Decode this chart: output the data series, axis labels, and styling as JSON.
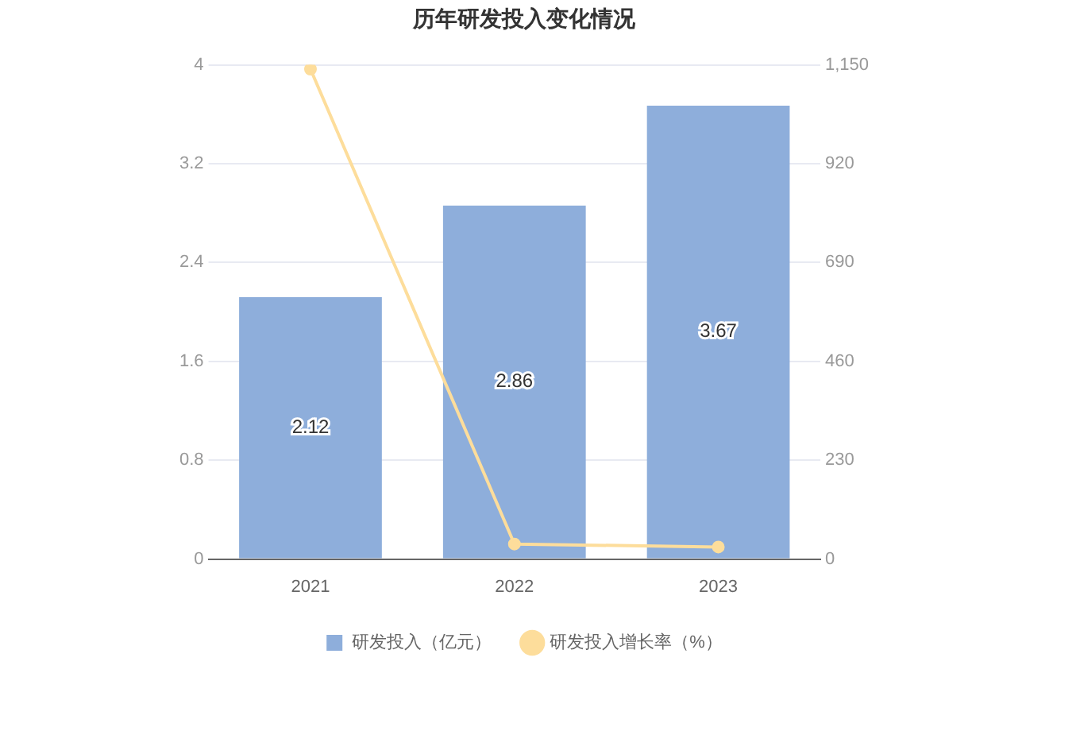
{
  "chart_data": {
    "type": "bar",
    "title": "历年研发投入变化情况",
    "categories": [
      "2021",
      "2022",
      "2023"
    ],
    "series": [
      {
        "name": "研发投入（亿元）",
        "color": "#8eaedb",
        "values": [
          2.12,
          2.86,
          3.67
        ],
        "value_labels": [
          "2.12",
          "2.86",
          "3.67"
        ]
      },
      {
        "name": "研发投入增长率（%）",
        "type": "line",
        "axis": "y2",
        "color": "#fddd9b",
        "values": [
          1140,
          35,
          28
        ]
      }
    ],
    "ylim": [
      0,
      4
    ],
    "yticks": [
      0,
      0.8,
      1.6,
      2.4,
      3.2,
      4
    ],
    "y2lim": [
      0,
      1150
    ],
    "y2ticks": [
      0,
      230,
      460,
      690,
      920,
      {
        "value": 1150,
        "label": "1,150"
      }
    ],
    "grid": "y",
    "legend": "bottom",
    "marker": "circle"
  }
}
